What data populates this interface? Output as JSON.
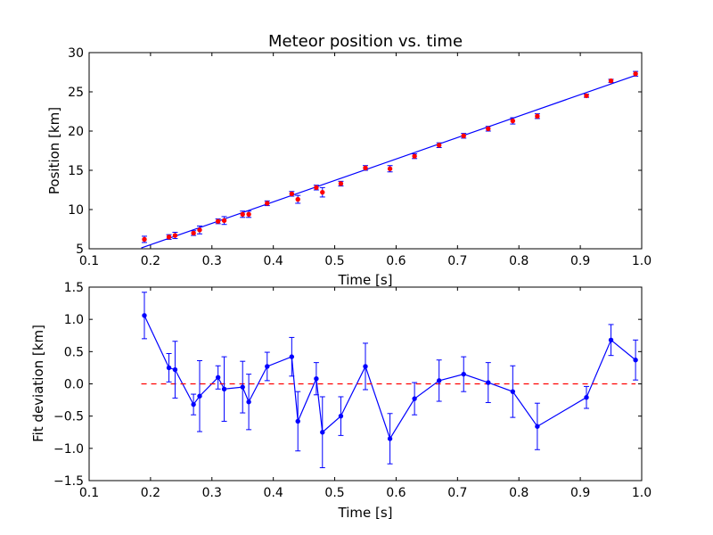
{
  "chart_data": [
    {
      "type": "scatter",
      "title": "Meteor position vs. time",
      "xlabel": "Time [s]",
      "ylabel": "Position [km]",
      "xlim": [
        0.1,
        1.0
      ],
      "ylim": [
        5,
        30
      ],
      "xticks": [
        "0.1",
        "0.2",
        "0.3",
        "0.4",
        "0.5",
        "0.6",
        "0.7",
        "0.8",
        "0.9",
        "1.0"
      ],
      "yticks": [
        "5",
        "10",
        "15",
        "20",
        "25",
        "30"
      ],
      "grid": false,
      "colors": {
        "points": "#ff0000",
        "fit": "#0000ff"
      },
      "series": [
        {
          "kind": "errorbar-points",
          "x": [
            0.19,
            0.23,
            0.24,
            0.27,
            0.28,
            0.31,
            0.32,
            0.35,
            0.36,
            0.39,
            0.43,
            0.44,
            0.47,
            0.48,
            0.51,
            0.55,
            0.59,
            0.63,
            0.67,
            0.71,
            0.75,
            0.79,
            0.83,
            0.91,
            0.95,
            0.99
          ],
          "y": [
            6.2,
            6.5,
            6.7,
            7.0,
            7.4,
            8.5,
            8.6,
            9.4,
            9.4,
            10.8,
            12.0,
            11.3,
            12.8,
            12.2,
            13.3,
            15.3,
            15.2,
            16.8,
            18.2,
            19.4,
            20.3,
            21.3,
            21.9,
            24.5,
            26.4,
            27.3
          ],
          "yerr": [
            0.4,
            0.3,
            0.4,
            0.3,
            0.5,
            0.3,
            0.5,
            0.4,
            0.4,
            0.3,
            0.3,
            0.5,
            0.3,
            0.6,
            0.3,
            0.3,
            0.4,
            0.3,
            0.3,
            0.3,
            0.3,
            0.4,
            0.3,
            0.2,
            0.2,
            0.3
          ]
        },
        {
          "kind": "fit-line",
          "x": [
            0.185,
            0.99
          ],
          "y": [
            5.1,
            27.1
          ]
        }
      ]
    },
    {
      "type": "line",
      "xlabel": "Time [s]",
      "ylabel": "Fit deviation [km]",
      "xlim": [
        0.1,
        1.0
      ],
      "ylim": [
        -1.5,
        1.5
      ],
      "xticks": [
        "0.1",
        "0.2",
        "0.3",
        "0.4",
        "0.5",
        "0.6",
        "0.7",
        "0.8",
        "0.9",
        "1.0"
      ],
      "yticks": [
        "−1.5",
        "−1.0",
        "−0.5",
        "0.0",
        "0.5",
        "1.0",
        "1.5"
      ],
      "grid": false,
      "colors": {
        "line": "#0000ff",
        "zero": "#ff0000"
      },
      "series": [
        {
          "kind": "errorbar-line",
          "x": [
            0.19,
            0.23,
            0.24,
            0.27,
            0.28,
            0.31,
            0.32,
            0.35,
            0.36,
            0.39,
            0.43,
            0.44,
            0.47,
            0.48,
            0.51,
            0.55,
            0.59,
            0.63,
            0.67,
            0.71,
            0.75,
            0.79,
            0.83,
            0.91,
            0.95,
            0.99
          ],
          "y": [
            1.06,
            0.25,
            0.22,
            -0.32,
            -0.19,
            0.1,
            -0.08,
            -0.05,
            -0.28,
            0.27,
            0.42,
            -0.58,
            0.08,
            -0.75,
            -0.5,
            0.27,
            -0.85,
            -0.23,
            0.05,
            0.15,
            0.02,
            -0.12,
            -0.66,
            -0.21,
            0.68,
            0.37
          ],
          "yerr": [
            0.36,
            0.22,
            0.44,
            0.16,
            0.55,
            0.18,
            0.5,
            0.4,
            0.43,
            0.22,
            0.3,
            0.46,
            0.25,
            0.55,
            0.3,
            0.36,
            0.39,
            0.25,
            0.32,
            0.27,
            0.31,
            0.4,
            0.36,
            0.17,
            0.24,
            0.31
          ]
        },
        {
          "kind": "zero-line",
          "x": [
            0.185,
            0.99
          ],
          "y": [
            0,
            0
          ]
        }
      ]
    }
  ]
}
